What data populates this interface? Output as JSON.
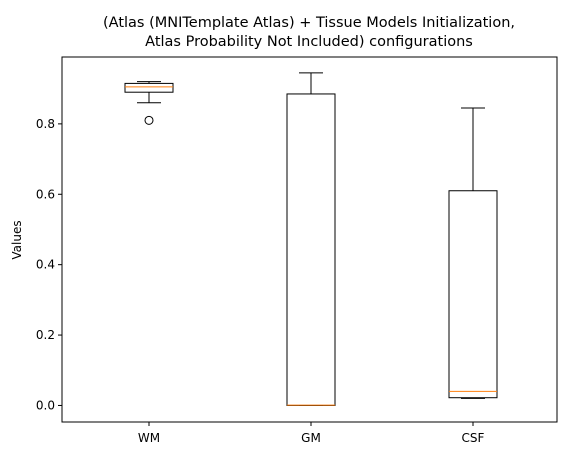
{
  "chart_data": {
    "type": "box",
    "title_lines": [
      "(Atlas (MNITemplate Atlas) + Tissue Models Initialization,",
      "Atlas Probability Not Included) configurations"
    ],
    "xlabel": "",
    "ylabel": "Values",
    "ylim": [
      -0.047,
      0.99
    ],
    "yticks": [
      "0.0",
      "0.2",
      "0.4",
      "0.6",
      "0.8"
    ],
    "categories": [
      "WM",
      "GM",
      "CSF"
    ],
    "boxes": [
      {
        "label": "WM",
        "whisker_low": 0.86,
        "q1": 0.89,
        "median": 0.905,
        "q3": 0.915,
        "whisker_high": 0.92,
        "outliers": [
          0.81
        ]
      },
      {
        "label": "GM",
        "whisker_low": 0.0,
        "q1": 0.0,
        "median": 0.001,
        "q3": 0.885,
        "whisker_high": 0.945,
        "outliers": []
      },
      {
        "label": "CSF",
        "whisker_low": 0.02,
        "q1": 0.022,
        "median": 0.04,
        "q3": 0.61,
        "whisker_high": 0.845,
        "outliers": []
      }
    ],
    "colors": {
      "box": "#000000",
      "median": "#ff7f0e",
      "outlier": "#000000"
    },
    "grid": false,
    "legend": "none"
  }
}
